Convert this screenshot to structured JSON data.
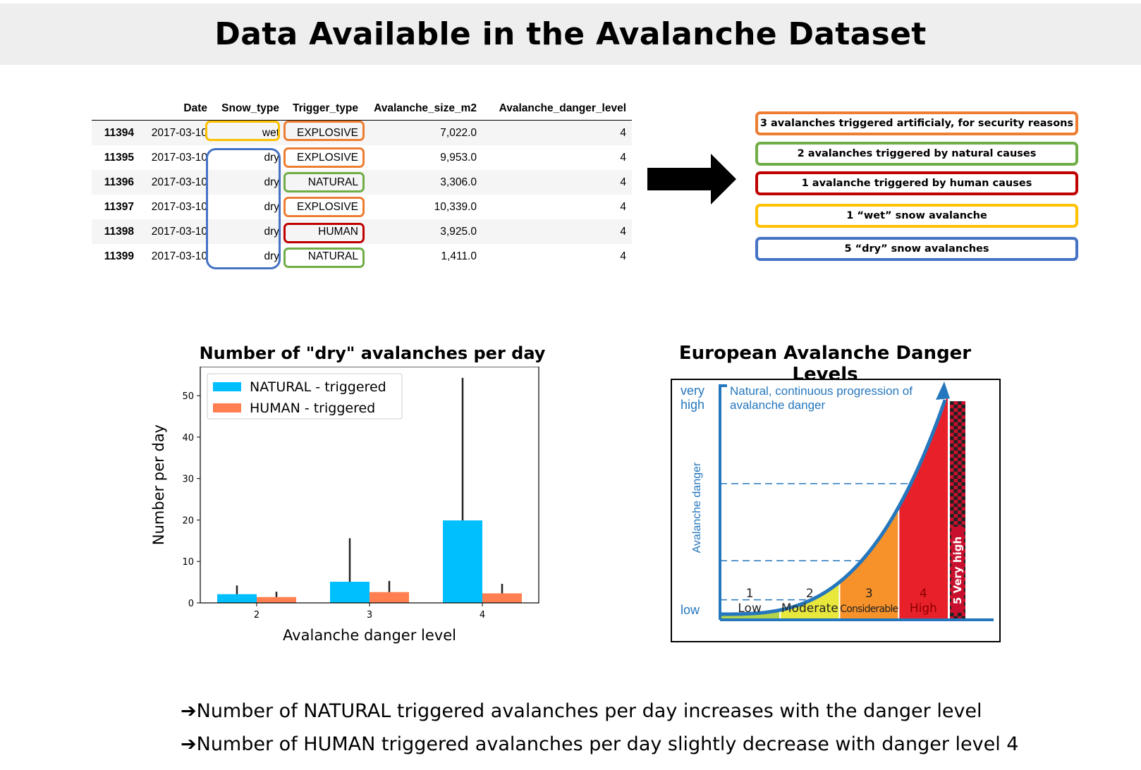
{
  "page_title": "Data Available in the Avalanche Dataset",
  "table": {
    "columns": [
      "",
      "Date",
      "Snow_type",
      "Trigger_type",
      "Avalanche_size_m2",
      "Avalanche_danger_level"
    ],
    "rows": [
      [
        "11394",
        "2017-03-10",
        "wet",
        "EXPLOSIVE",
        "7,022.0",
        "4"
      ],
      [
        "11395",
        "2017-03-10",
        "dry",
        "EXPLOSIVE",
        "9,953.0",
        "4"
      ],
      [
        "11396",
        "2017-03-10",
        "dry",
        "NATURAL",
        "3,306.0",
        "4"
      ],
      [
        "11397",
        "2017-03-10",
        "dry",
        "EXPLOSIVE",
        "10,339.0",
        "4"
      ],
      [
        "11398",
        "2017-03-10",
        "dry",
        "HUMAN",
        "3,925.0",
        "4"
      ],
      [
        "11399",
        "2017-03-10",
        "dry",
        "NATURAL",
        "1,411.0",
        "4"
      ]
    ]
  },
  "summary": [
    {
      "text": "3 avalanches triggered artificialy, for security reasons",
      "color": "#ed7d31"
    },
    {
      "text": "2 avalanches triggered by natural causes",
      "color": "#70ad47"
    },
    {
      "text": "1 avalanche triggered by human causes",
      "color": "#c00000"
    },
    {
      "text": "1 “wet” snow avalanche",
      "color": "#ffc000"
    },
    {
      "text": "5 “dry” snow avalanches",
      "color": "#4472c4"
    }
  ],
  "colors": {
    "explosive": "#ed7d31",
    "natural": "#70ad47",
    "human": "#c00000",
    "wet": "#ffc000",
    "dry": "#4472c4",
    "bar_natural": "#00bfff",
    "bar_human": "#ff7f50"
  },
  "chart_data": {
    "type": "bar",
    "title": "Number of \"dry\" avalanches per day",
    "xlabel": "Avalanche danger level",
    "ylabel": "Number per day",
    "categories": [
      "2",
      "3",
      "4"
    ],
    "ylim": [
      0,
      57
    ],
    "yticks": [
      0,
      10,
      20,
      30,
      40,
      50
    ],
    "legend_position": "top-left",
    "series": [
      {
        "name": "NATURAL - triggered",
        "values": [
          2.1,
          5.1,
          19.9
        ],
        "error_upper": [
          4.2,
          15.6,
          54.3
        ]
      },
      {
        "name": "HUMAN - triggered",
        "values": [
          1.4,
          2.6,
          2.3
        ],
        "error_upper": [
          2.7,
          5.3,
          4.6
        ]
      }
    ]
  },
  "danger_levels": {
    "title": "European Avalanche Danger Levels",
    "top_label_line1": "very",
    "top_label_line2": "high",
    "bottom_label": "low",
    "axis_label": "Avalanche danger",
    "caption_line1": "Natural, continuous progression of",
    "caption_line2": "avalanche danger",
    "levels": [
      {
        "num": "1",
        "name": "Low",
        "color": "#b4d24a"
      },
      {
        "num": "2",
        "name": "Moderate",
        "color": "#e8e83c"
      },
      {
        "num": "3",
        "name": "Considerable",
        "color": "#f7922a"
      },
      {
        "num": "4",
        "name": "High",
        "color": "#e8202a"
      },
      {
        "num": "5",
        "name": "Very high",
        "color": "#c8102e"
      }
    ]
  },
  "conclusions": [
    "Number of NATURAL triggered avalanches per day increases with the danger level",
    "Number of HUMAN triggered avalanches per day slightly decrease with danger level 4"
  ],
  "arrow_glyph": "➔"
}
